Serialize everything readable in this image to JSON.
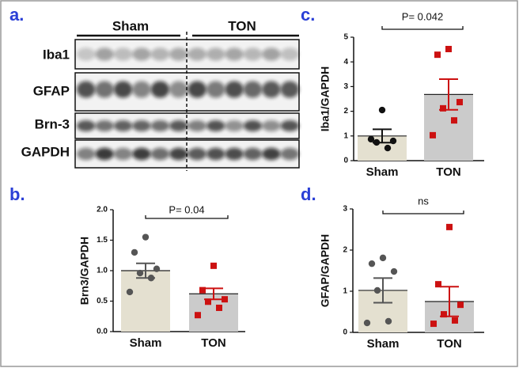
{
  "blot": {
    "label": "a.",
    "groups": [
      "Sham",
      "TON"
    ],
    "rows": [
      "Iba1",
      "GFAP",
      "Brn-3",
      "GAPDH"
    ]
  },
  "chart_data": [
    {
      "type": "bar",
      "panel_label": "b.",
      "y_label": "Brn3/GAPDH",
      "annotation": "P= 0.04",
      "categories": [
        "Sham",
        "TON"
      ],
      "values": [
        1.0,
        0.62
      ],
      "errors": [
        0.12,
        0.09
      ],
      "points": [
        [
          1.55,
          1.3,
          1.03,
          0.96,
          0.88,
          0.65
        ],
        [
          1.08,
          0.68,
          0.53,
          0.49,
          0.39,
          0.27
        ]
      ],
      "bar_colors": [
        "#e4e0d0",
        "#cbcbcb"
      ],
      "point_colors": [
        "#555555",
        "#cc1111"
      ],
      "point_shapes": [
        "circle",
        "square"
      ],
      "ylim": [
        0,
        2
      ],
      "yticks": [
        {
          "value": 0,
          "label": "0.0"
        },
        {
          "value": 0.5,
          "label": "0.5"
        },
        {
          "value": 1,
          "label": "1.0"
        },
        {
          "value": 1.5,
          "label": "1.5"
        },
        {
          "value": 2,
          "label": "2.0"
        }
      ]
    },
    {
      "type": "bar",
      "panel_label": "c.",
      "y_label": "Iba1/GAPDH",
      "annotation": "P= 0.042",
      "categories": [
        "Sham",
        "TON"
      ],
      "values": [
        1.0,
        2.68
      ],
      "errors": [
        0.27,
        0.62
      ],
      "points": [
        [
          2.05,
          0.87,
          0.8,
          0.74,
          0.51
        ],
        [
          4.52,
          4.29,
          2.37,
          2.12,
          1.63,
          1.03
        ]
      ],
      "bar_colors": [
        "#e4e0d0",
        "#cbcbcb"
      ],
      "point_colors": [
        "#111111",
        "#cc1111"
      ],
      "point_shapes": [
        "circle",
        "square"
      ],
      "ylim": [
        0,
        5
      ],
      "yticks": [
        0,
        1,
        2,
        3,
        4,
        5
      ]
    },
    {
      "type": "bar",
      "panel_label": "d.",
      "y_label": "GFAP/GAPDH",
      "annotation": "ns",
      "categories": [
        "Sham",
        "TON"
      ],
      "values": [
        1.02,
        0.75
      ],
      "errors": [
        0.3,
        0.36
      ],
      "points": [
        [
          1.81,
          1.67,
          1.48,
          1.02,
          0.27,
          0.23
        ],
        [
          2.56,
          1.17,
          0.67,
          0.44,
          0.29,
          0.21
        ]
      ],
      "bar_colors": [
        "#e4e0d0",
        "#cbcbcb"
      ],
      "point_colors": [
        "#555555",
        "#cc1111"
      ],
      "point_shapes": [
        "circle",
        "square"
      ],
      "ylim": [
        0,
        3
      ],
      "yticks": [
        0,
        1,
        2,
        3
      ]
    }
  ]
}
